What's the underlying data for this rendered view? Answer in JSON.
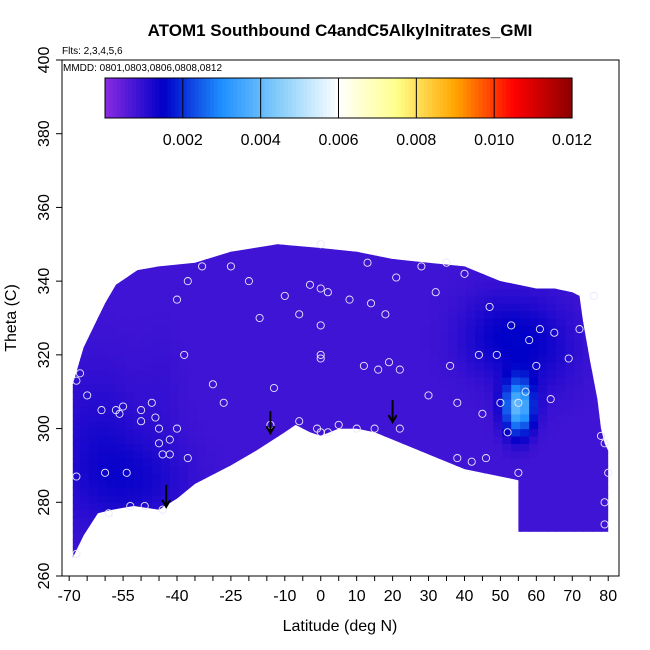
{
  "chart_data": {
    "type": "heatmap",
    "title": "ATOM1 Southbound C4andC5Alkylnitrates_GMI",
    "subtitle_flights": "Flts: 2,3,4,5,6",
    "subtitle_dates": "MMDD: 0801,0803,0806,0808,0812",
    "xlabel": "Latitude (deg N)",
    "ylabel": "Theta (C)",
    "xlim": [
      -72,
      83
    ],
    "ylim": [
      260,
      400
    ],
    "x_ticks": [
      -70,
      -55,
      -40,
      -25,
      -10,
      0,
      10,
      20,
      30,
      40,
      50,
      60,
      70,
      80
    ],
    "x_tick_labels": [
      "-70",
      "-55",
      "-40",
      "-25",
      "-10",
      "0",
      "10",
      "20",
      "30",
      "40",
      "50",
      "60",
      "70",
      "80"
    ],
    "y_ticks": [
      260,
      280,
      300,
      320,
      340,
      360,
      380,
      400
    ],
    "y_tick_labels": [
      "260",
      "280",
      "300",
      "320",
      "340",
      "360",
      "380",
      "400"
    ],
    "colorbar": {
      "min": 0,
      "max": 0.012,
      "ticks": [
        0.002,
        0.004,
        0.006,
        0.008,
        0.01,
        0.012
      ],
      "tick_labels": [
        "0.002",
        "0.004",
        "0.006",
        "0.008",
        "0.010",
        "0.012"
      ],
      "colors": [
        "#8a2be2",
        "#0000c8",
        "#1e90ff",
        "#87cefa",
        "#ffffff",
        "#ffff8a",
        "#ffa500",
        "#ff0000",
        "#8b0000"
      ]
    },
    "region_upper_boundary": [
      [
        -69,
        312
      ],
      [
        -66,
        322
      ],
      [
        -63,
        328
      ],
      [
        -60,
        334
      ],
      [
        -57,
        339
      ],
      [
        -54,
        341
      ],
      [
        -51,
        343
      ],
      [
        -45,
        344
      ],
      [
        -35,
        345
      ],
      [
        -25,
        348
      ],
      [
        -12,
        350
      ],
      [
        0,
        349
      ],
      [
        10,
        348
      ],
      [
        20,
        346
      ],
      [
        30,
        345
      ],
      [
        40,
        344
      ],
      [
        45,
        342
      ],
      [
        50,
        340
      ],
      [
        55,
        339
      ],
      [
        60,
        338
      ],
      [
        65,
        338
      ],
      [
        70,
        337
      ],
      [
        72,
        336
      ],
      [
        73,
        329
      ],
      [
        75,
        318
      ],
      [
        77,
        308
      ],
      [
        78,
        300
      ],
      [
        79,
        296
      ],
      [
        80,
        294
      ]
    ],
    "region_lower_boundary": [
      [
        -69,
        265
      ],
      [
        -66,
        271
      ],
      [
        -62,
        277
      ],
      [
        -58,
        278
      ],
      [
        -52,
        279
      ],
      [
        -45,
        278
      ],
      [
        -40,
        281
      ],
      [
        -35,
        285
      ],
      [
        -25,
        290
      ],
      [
        -18,
        294
      ],
      [
        -10,
        299
      ],
      [
        -7,
        301
      ],
      [
        -3,
        299
      ],
      [
        0,
        298
      ],
      [
        5,
        300
      ],
      [
        10,
        300
      ],
      [
        15,
        299
      ],
      [
        20,
        297
      ],
      [
        30,
        293
      ],
      [
        40,
        289
      ],
      [
        50,
        287
      ],
      [
        55,
        286
      ]
    ],
    "right_box": {
      "x": [
        55,
        80
      ],
      "y": [
        272,
        294
      ]
    },
    "background_value": 0.0008,
    "field_blobs": [
      {
        "x": -62,
        "y": 295,
        "sx": 9,
        "sy": 15,
        "value": 0.0012
      },
      {
        "x": -50,
        "y": 286,
        "sx": 10,
        "sy": 8,
        "value": 0.0012
      },
      {
        "x": -44,
        "y": 310,
        "sx": 4,
        "sy": 12,
        "value": 0.0009
      },
      {
        "x": 50,
        "y": 325,
        "sx": 8,
        "sy": 8,
        "value": 0.0014
      },
      {
        "x": 62,
        "y": 322,
        "sx": 7,
        "sy": 9,
        "value": 0.0012
      },
      {
        "x": 55,
        "y": 306,
        "sx": 2.8,
        "sy": 5,
        "value": 0.004
      }
    ],
    "sample_points": [
      [
        -68,
        313
      ],
      [
        -67,
        315
      ],
      [
        -68,
        287
      ],
      [
        -68,
        266
      ],
      [
        -65,
        309
      ],
      [
        -61,
        305
      ],
      [
        -60,
        288
      ],
      [
        -59,
        277
      ],
      [
        -57,
        305
      ],
      [
        -56,
        304
      ],
      [
        -55,
        306
      ],
      [
        -54,
        288
      ],
      [
        -53,
        279
      ],
      [
        -50,
        305
      ],
      [
        -50,
        302
      ],
      [
        -49,
        279
      ],
      [
        -47,
        307
      ],
      [
        -46,
        303
      ],
      [
        -45,
        300
      ],
      [
        -45,
        296
      ],
      [
        -44,
        293
      ],
      [
        -44,
        278
      ],
      [
        -42,
        293
      ],
      [
        -42,
        297
      ],
      [
        -40,
        300
      ],
      [
        -37,
        292
      ],
      [
        -40,
        335
      ],
      [
        -37,
        340
      ],
      [
        -38,
        320
      ],
      [
        -33,
        344
      ],
      [
        -30,
        312
      ],
      [
        -27,
        307
      ],
      [
        -25,
        344
      ],
      [
        -20,
        340
      ],
      [
        -17,
        330
      ],
      [
        -14,
        301
      ],
      [
        -13,
        311
      ],
      [
        -10,
        336
      ],
      [
        -6,
        331
      ],
      [
        -3,
        339
      ],
      [
        0,
        350
      ],
      [
        0,
        338
      ],
      [
        2,
        337
      ],
      [
        -1,
        300
      ],
      [
        0,
        299
      ],
      [
        0,
        319
      ],
      [
        0,
        320
      ],
      [
        0,
        328
      ],
      [
        -6,
        302
      ],
      [
        2,
        299
      ],
      [
        5,
        301
      ],
      [
        8,
        335
      ],
      [
        10,
        300
      ],
      [
        12,
        317
      ],
      [
        13,
        345
      ],
      [
        14,
        334
      ],
      [
        15,
        300
      ],
      [
        16,
        316
      ],
      [
        18,
        331
      ],
      [
        19,
        318
      ],
      [
        21,
        341
      ],
      [
        22,
        300
      ],
      [
        22,
        316
      ],
      [
        28,
        344
      ],
      [
        30,
        309
      ],
      [
        32,
        337
      ],
      [
        35,
        345
      ],
      [
        36,
        317
      ],
      [
        38,
        292
      ],
      [
        38,
        307
      ],
      [
        40,
        342
      ],
      [
        42,
        291
      ],
      [
        44,
        320
      ],
      [
        45,
        304
      ],
      [
        46,
        292
      ],
      [
        47,
        333
      ],
      [
        49,
        320
      ],
      [
        50,
        307
      ],
      [
        52,
        299
      ],
      [
        53,
        328
      ],
      [
        55,
        288
      ],
      [
        55,
        307
      ],
      [
        57,
        310
      ],
      [
        58,
        324
      ],
      [
        60,
        317
      ],
      [
        61,
        327
      ],
      [
        64,
        308
      ],
      [
        65,
        326
      ],
      [
        69,
        319
      ],
      [
        72,
        327
      ],
      [
        76,
        336
      ],
      [
        78,
        298
      ],
      [
        79,
        296
      ],
      [
        79,
        280
      ],
      [
        79,
        274
      ],
      [
        80,
        288
      ]
    ],
    "arrows": [
      [
        -43,
        282
      ],
      [
        -14,
        302
      ],
      [
        20,
        305
      ]
    ],
    "legend_placement": "top (horizontal colorbar)",
    "grid": false
  }
}
